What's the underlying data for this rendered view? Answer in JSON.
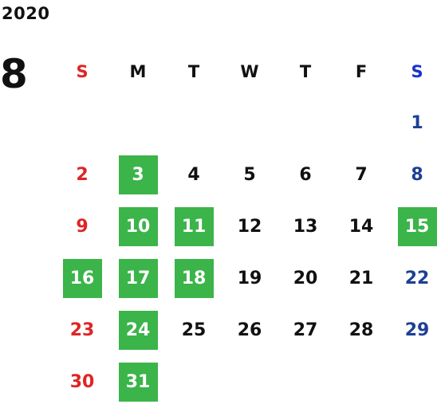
{
  "year": "2020",
  "month": "8",
  "weekdays": [
    "S",
    "M",
    "T",
    "W",
    "T",
    "F",
    "S"
  ],
  "colors": {
    "sunday": "#e02424",
    "saturday": "#1e3f94",
    "highlight": "#3bb44a"
  },
  "weeks": [
    [
      null,
      null,
      null,
      null,
      null,
      null,
      {
        "d": "1"
      }
    ],
    [
      {
        "d": "2"
      },
      {
        "d": "3",
        "hl": true
      },
      {
        "d": "4"
      },
      {
        "d": "5"
      },
      {
        "d": "6"
      },
      {
        "d": "7"
      },
      {
        "d": "8"
      }
    ],
    [
      {
        "d": "9"
      },
      {
        "d": "10",
        "hl": true
      },
      {
        "d": "11",
        "hl": true
      },
      {
        "d": "12"
      },
      {
        "d": "13"
      },
      {
        "d": "14"
      },
      {
        "d": "15",
        "hl": true
      }
    ],
    [
      {
        "d": "16",
        "hl": true
      },
      {
        "d": "17",
        "hl": true
      },
      {
        "d": "18",
        "hl": true
      },
      {
        "d": "19"
      },
      {
        "d": "20"
      },
      {
        "d": "21"
      },
      {
        "d": "22"
      }
    ],
    [
      {
        "d": "23"
      },
      {
        "d": "24",
        "hl": true
      },
      {
        "d": "25"
      },
      {
        "d": "26"
      },
      {
        "d": "27"
      },
      {
        "d": "28"
      },
      {
        "d": "29"
      }
    ],
    [
      {
        "d": "30"
      },
      {
        "d": "31",
        "hl": true
      },
      null,
      null,
      null,
      null,
      null
    ]
  ]
}
